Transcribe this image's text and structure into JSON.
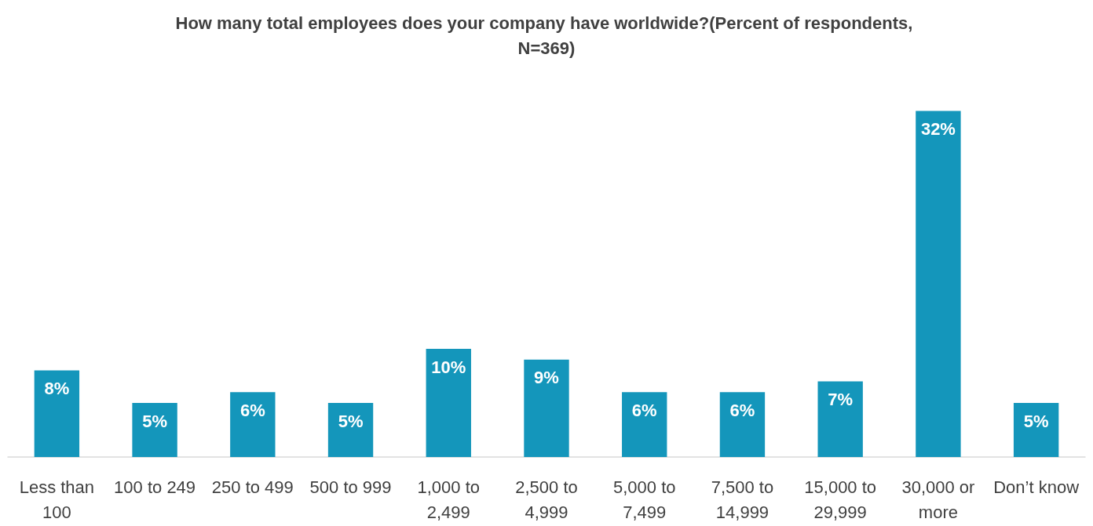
{
  "chart_data": {
    "type": "bar",
    "title": "How many total employees does your company have worldwide?(Percent of respondents, N=369)",
    "categories": [
      "Less than 100",
      "100 to 249",
      "250 to 499",
      "500 to 999",
      "1,000 to 2,499",
      "2,500 to 4,999",
      "5,000 to 7,499",
      "7,500 to 14,999",
      "15,000 to 29,999",
      "30,000 or more",
      "Don’t know"
    ],
    "values": [
      8,
      5,
      6,
      5,
      10,
      9,
      6,
      6,
      7,
      32,
      5
    ],
    "value_labels": [
      "8%",
      "5%",
      "6%",
      "5%",
      "10%",
      "9%",
      "6%",
      "6%",
      "7%",
      "32%",
      "5%"
    ],
    "color": "#1496bb"
  }
}
